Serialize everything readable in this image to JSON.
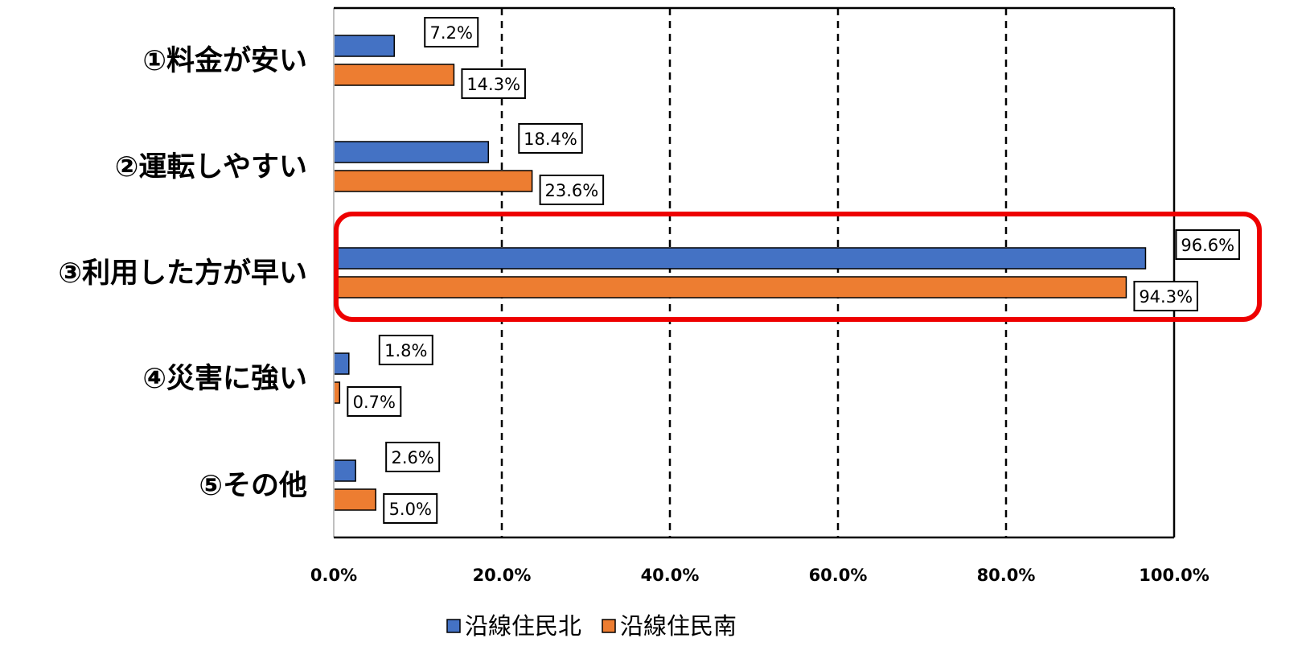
{
  "chart_data": {
    "type": "bar",
    "orientation": "horizontal",
    "title": "",
    "xlabel": "",
    "ylabel": "",
    "categories": [
      "①料金が安い",
      "②運転しやすい",
      "③利用した方が早い",
      "④災害に強い",
      "⑤その他"
    ],
    "series": [
      {
        "name": "沿線住民北",
        "color": "#4472c4",
        "values": [
          7.2,
          18.4,
          96.6,
          1.8,
          2.6
        ],
        "labels": [
          "7.2%",
          "18.4%",
          "96.6%",
          "1.8%",
          "2.6%"
        ]
      },
      {
        "name": "沿線住民南",
        "color": "#ed7d31",
        "values": [
          14.3,
          23.6,
          94.3,
          0.7,
          5.0
        ],
        "labels": [
          "14.3%",
          "23.6%",
          "94.3%",
          "0.7%",
          "5.0%"
        ]
      }
    ],
    "xlim": [
      0,
      100
    ],
    "x_ticks": [
      0,
      20,
      40,
      60,
      80,
      100
    ],
    "x_tick_labels": [
      "0.0%",
      "20.0%",
      "40.0%",
      "60.0%",
      "80.0%",
      "100.0%"
    ],
    "grid": "vertical dashed",
    "legend_position": "bottom",
    "highlight": {
      "category_index": 2,
      "color": "#ee0000"
    }
  }
}
